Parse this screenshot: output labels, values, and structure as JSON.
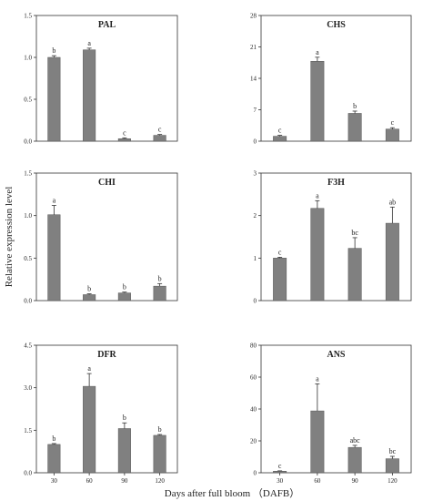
{
  "ylabel": "Relative  expression level",
  "xlabel": "Days  after full bloom  （DAFB）",
  "colors": {
    "bar": "#808080",
    "bar_edge": "#555555",
    "axis": "#333333"
  },
  "chart_data": [
    {
      "type": "bar",
      "title": "PAL",
      "categories": [
        "30",
        "60",
        "90",
        "120"
      ],
      "values": [
        1.0,
        1.09,
        0.03,
        0.07
      ],
      "errors": [
        0.02,
        0.02,
        0.01,
        0.01
      ],
      "letters": [
        "b",
        "a",
        "c",
        "c"
      ],
      "ylim": [
        0,
        1.5
      ],
      "yticks": [
        0.0,
        0.5,
        1.0,
        1.5
      ],
      "ytick_labels": [
        "0.0",
        "0.5",
        "1.0",
        "1.5"
      ],
      "show_xticks": false
    },
    {
      "type": "bar",
      "title": "CHS",
      "categories": [
        "30",
        "60",
        "90",
        "120"
      ],
      "values": [
        1.1,
        17.8,
        6.2,
        2.7
      ],
      "errors": [
        0.2,
        0.9,
        0.5,
        0.3
      ],
      "letters": [
        "c",
        "a",
        "b",
        "c"
      ],
      "ylim": [
        0,
        28
      ],
      "yticks": [
        0,
        7,
        14,
        21,
        28
      ],
      "ytick_labels": [
        "0",
        "7",
        "14",
        "21",
        "28"
      ],
      "show_xticks": false
    },
    {
      "type": "bar",
      "title": "CHI",
      "categories": [
        "30",
        "60",
        "90",
        "120"
      ],
      "values": [
        1.01,
        0.07,
        0.09,
        0.17
      ],
      "errors": [
        0.11,
        0.01,
        0.01,
        0.03
      ],
      "letters": [
        "a",
        "b",
        "b",
        "b"
      ],
      "ylim": [
        0,
        1.5
      ],
      "yticks": [
        0.0,
        0.5,
        1.0,
        1.5
      ],
      "ytick_labels": [
        "0.0",
        "0.5",
        "1.0",
        "1.5"
      ],
      "show_xticks": false
    },
    {
      "type": "bar",
      "title": "F3H",
      "categories": [
        "30",
        "60",
        "90",
        "120"
      ],
      "values": [
        1.0,
        2.17,
        1.23,
        1.82
      ],
      "errors": [
        0.02,
        0.18,
        0.25,
        0.38
      ],
      "letters": [
        "c",
        "a",
        "bc",
        "ab"
      ],
      "ylim": [
        0,
        3
      ],
      "yticks": [
        0,
        1,
        2,
        3
      ],
      "ytick_labels": [
        "0",
        "1",
        "2",
        "3"
      ],
      "show_xticks": false
    },
    {
      "type": "bar",
      "title": "DFR",
      "categories": [
        "30",
        "60",
        "90",
        "120"
      ],
      "values": [
        1.0,
        3.05,
        1.56,
        1.32
      ],
      "errors": [
        0.03,
        0.45,
        0.2,
        0.03
      ],
      "letters": [
        "b",
        "a",
        "b",
        "b"
      ],
      "ylim": [
        0,
        4.5
      ],
      "yticks": [
        0.0,
        1.5,
        3.0,
        4.5
      ],
      "ytick_labels": [
        "0.0",
        "1.5",
        "3.0",
        "4.5"
      ],
      "show_xticks": true
    },
    {
      "type": "bar",
      "title": "ANS",
      "categories": [
        "30",
        "60",
        "90",
        "120"
      ],
      "values": [
        1.0,
        38.8,
        15.9,
        8.8
      ],
      "errors": [
        0.2,
        17.0,
        1.3,
        1.5
      ],
      "letters": [
        "c",
        "a",
        "abc",
        "bc"
      ],
      "ylim": [
        0,
        80
      ],
      "yticks": [
        0,
        20,
        40,
        60,
        80
      ],
      "ytick_labels": [
        "0",
        "20",
        "40",
        "60",
        "80"
      ],
      "show_xticks": true
    }
  ]
}
